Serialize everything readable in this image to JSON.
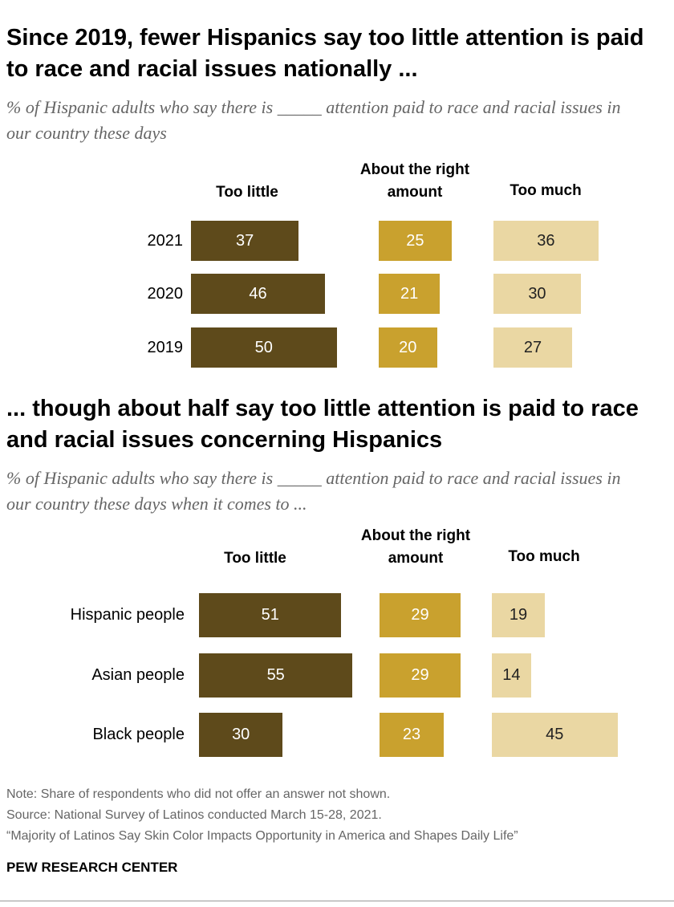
{
  "chart_data": [
    {
      "type": "bar",
      "title": "Since 2019, fewer Hispanics say too little attention is paid to race and racial issues nationally ...",
      "subtitle": "% of Hispanic adults who say there is _____ attention paid to race and racial issues in our country these days",
      "categories": [
        "2021",
        "2020",
        "2019"
      ],
      "series": [
        {
          "name": "Too little",
          "color": "#5e4a1b",
          "values": [
            37,
            46,
            50
          ]
        },
        {
          "name": "About the right amount",
          "color": "#c9a12e",
          "values": [
            25,
            21,
            20
          ]
        },
        {
          "name": "Too much",
          "color": "#ead7a3",
          "values": [
            36,
            30,
            27
          ]
        }
      ]
    },
    {
      "type": "bar",
      "title": "... though about half say too little attention is paid to race and racial issues concerning Hispanics",
      "subtitle": "% of Hispanic adults who say there is _____ attention paid to race and racial issues in our country these days when it comes to ...",
      "categories": [
        "Hispanic people",
        "Asian people",
        "Black people"
      ],
      "series": [
        {
          "name": "Too little",
          "color": "#5e4a1b",
          "values": [
            51,
            55,
            30
          ]
        },
        {
          "name": "About the right amount",
          "color": "#c9a12e",
          "values": [
            29,
            29,
            23
          ]
        },
        {
          "name": "Too much",
          "color": "#ead7a3",
          "values": [
            19,
            14,
            45
          ]
        }
      ]
    }
  ],
  "footer": {
    "note": "Note: Share of respondents who did not offer an answer not shown.",
    "source": "Source: National Survey of Latinos conducted March 15-28, 2021.",
    "report": "“Majority of Latinos Say Skin Color Impacts Opportunity in America and Shapes Daily Life”",
    "brand": "PEW RESEARCH CENTER"
  }
}
